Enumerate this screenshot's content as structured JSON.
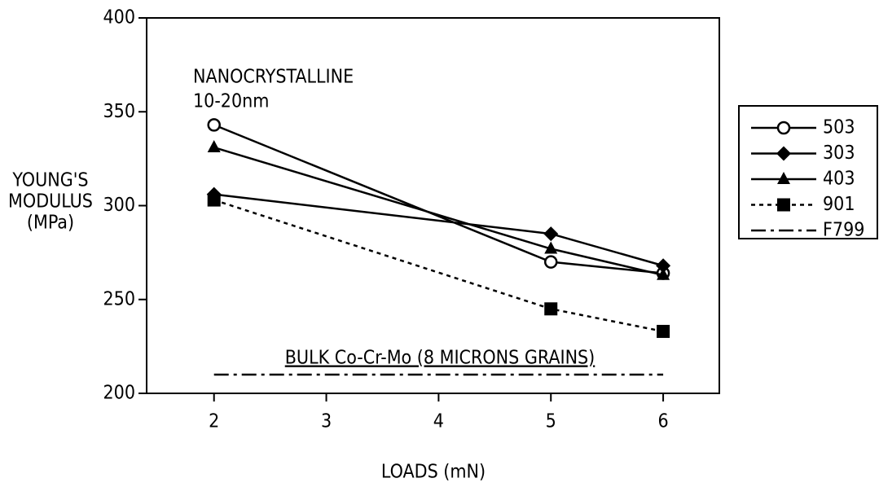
{
  "chart_data": {
    "type": "line",
    "ylabel": [
      "YOUNG'S",
      "MODULUS",
      "(MPa)"
    ],
    "xlabel": "LOADS (mN)",
    "annotations": [
      "NANOCRYSTALLINE",
      "10-20nm",
      "BULK Co-Cr-Mo (8 MICRONS GRAINS)"
    ],
    "xlim": [
      1.4,
      6.5
    ],
    "xticks": [
      2,
      3,
      4,
      5,
      6
    ],
    "ylim": [
      200,
      400
    ],
    "yticks": [
      200,
      250,
      300,
      350,
      400
    ],
    "series": [
      {
        "name": "503",
        "color": "#000000",
        "marker": "circle-open",
        "dash": "solid",
        "x": [
          2,
          5,
          6
        ],
        "values": [
          343,
          270,
          264
        ]
      },
      {
        "name": "303",
        "color": "#000000",
        "marker": "diamond",
        "dash": "solid",
        "x": [
          2,
          5,
          6
        ],
        "values": [
          306,
          285,
          268
        ]
      },
      {
        "name": "403",
        "color": "#000000",
        "marker": "triangle",
        "dash": "solid",
        "x": [
          2,
          5,
          6
        ],
        "values": [
          331,
          277,
          263
        ]
      },
      {
        "name": "901",
        "color": "#000000",
        "marker": "square",
        "dash": "dotted",
        "x": [
          2,
          5,
          6
        ],
        "values": [
          303,
          245,
          233
        ]
      },
      {
        "name": "F799",
        "color": "#000000",
        "marker": "none",
        "dash": "dash-dot",
        "x": [
          2,
          6
        ],
        "values": [
          210,
          210
        ]
      }
    ]
  }
}
